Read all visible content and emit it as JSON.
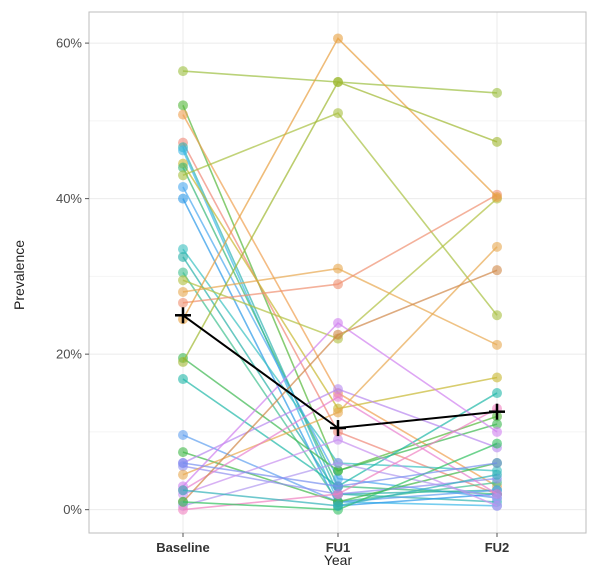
{
  "chart_data": {
    "type": "line",
    "xlabel": "Year",
    "ylabel": "Prevalence",
    "categories": [
      "Baseline",
      "FU1",
      "FU2"
    ],
    "ylim": [
      -0.03,
      0.64
    ],
    "y_ticks": [
      0,
      0.2,
      0.4,
      0.6
    ],
    "y_tick_labels": [
      "0%",
      "20%",
      "40%",
      "60%"
    ],
    "grid": true,
    "legend": "none",
    "mean_series": {
      "values": [
        0.25,
        0.105,
        0.126
      ],
      "color": "#000000"
    },
    "series": [
      {
        "values": [
          0.564,
          0.55,
          0.536
        ],
        "color": "#9cbf40"
      },
      {
        "values": [
          0.52,
          0.05,
          0.12
        ],
        "color": "#55b83a"
      },
      {
        "values": [
          0.508,
          0.15,
          0.03
        ],
        "color": "#f0a050"
      },
      {
        "values": [
          0.472,
          0.1,
          0.02
        ],
        "color": "#f08878"
      },
      {
        "values": [
          0.466,
          0.02,
          0.01
        ],
        "color": "#30b4b0"
      },
      {
        "values": [
          0.462,
          0.01,
          0.005
        ],
        "color": "#3cb8e8"
      },
      {
        "values": [
          0.445,
          0.13,
          0.17
        ],
        "color": "#c8b830"
      },
      {
        "values": [
          0.44,
          0.03,
          0.02
        ],
        "color": "#38b878"
      },
      {
        "values": [
          0.43,
          0.51,
          0.25
        ],
        "color": "#a8c040"
      },
      {
        "values": [
          0.415,
          0.04,
          0.015
        ],
        "color": "#4aa8f0"
      },
      {
        "values": [
          0.4,
          0.005,
          0.02
        ],
        "color": "#2a98e8"
      },
      {
        "values": [
          0.335,
          0.06,
          0.05
        ],
        "color": "#38c0c0"
      },
      {
        "values": [
          0.325,
          0.02,
          0.025
        ],
        "color": "#28b0a8"
      },
      {
        "values": [
          0.305,
          0.01,
          0.035
        ],
        "color": "#40c090"
      },
      {
        "values": [
          0.295,
          0.22,
          0.4
        ],
        "color": "#b0c040"
      },
      {
        "values": [
          0.28,
          0.31,
          0.212
        ],
        "color": "#e8a850"
      },
      {
        "values": [
          0.266,
          0.29,
          0.405
        ],
        "color": "#f09070"
      },
      {
        "values": [
          0.245,
          0.606,
          0.402
        ],
        "color": "#e8a040"
      },
      {
        "values": [
          0.195,
          0.05,
          0.11
        ],
        "color": "#3cb850"
      },
      {
        "values": [
          0.19,
          0.55,
          0.473
        ],
        "color": "#a0b830"
      },
      {
        "values": [
          0.168,
          0.03,
          0.15
        ],
        "color": "#20b8a8"
      },
      {
        "values": [
          0.096,
          0.01,
          0.025
        ],
        "color": "#60a0f0"
      },
      {
        "values": [
          0.074,
          0.01,
          0.06
        ],
        "color": "#40b848"
      },
      {
        "values": [
          0.06,
          0.155,
          0.08
        ],
        "color": "#b888f0"
      },
      {
        "values": [
          0.056,
          0.02,
          0.04
        ],
        "color": "#9090f0"
      },
      {
        "values": [
          0.045,
          0.125,
          0.338
        ],
        "color": "#e8a850"
      },
      {
        "values": [
          0.03,
          0.24,
          0.1
        ],
        "color": "#d080f0"
      },
      {
        "values": [
          0.025,
          0.145,
          0.02
        ],
        "color": "#e880d0"
      },
      {
        "values": [
          0.02,
          0.09,
          0.005
        ],
        "color": "#c890f0"
      },
      {
        "values": [
          0.01,
          0.225,
          0.308
        ],
        "color": "#d08848"
      },
      {
        "values": [
          0.005,
          0.06,
          0.015
        ],
        "color": "#b098f0"
      },
      {
        "values": [
          0.0,
          0.02,
          0.13
        ],
        "color": "#f080c0"
      },
      {
        "values": [
          0.01,
          0.0,
          0.085
        ],
        "color": "#30c060"
      },
      {
        "values": [
          0.025,
          0.005,
          0.045
        ],
        "color": "#30b0b8"
      },
      {
        "values": [
          0.06,
          0.03,
          0.06
        ],
        "color": "#7890f0"
      }
    ]
  }
}
